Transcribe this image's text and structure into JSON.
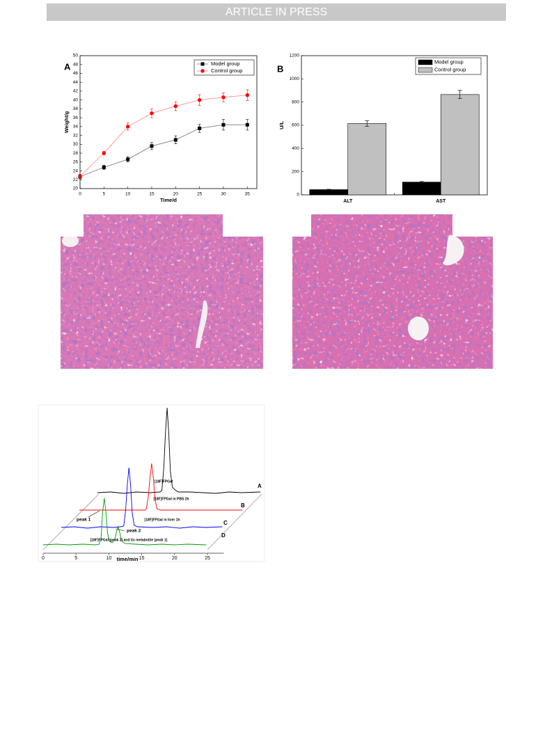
{
  "header": {
    "banner": "ARTICLE IN PRESS"
  },
  "chart_data": [
    {
      "type": "line",
      "panel": "A",
      "xlabel": "Time/d",
      "ylabel": "Weight/g",
      "x": [
        0,
        5,
        10,
        15,
        20,
        25,
        30,
        35
      ],
      "xlim": [
        0,
        37
      ],
      "xticks": [
        0,
        5,
        10,
        15,
        20,
        25,
        30,
        35
      ],
      "ylim": [
        20,
        50
      ],
      "yticks": [
        20,
        22,
        24,
        26,
        28,
        30,
        32,
        34,
        36,
        38,
        40,
        42,
        44,
        46,
        48,
        50
      ],
      "legend": "upper right",
      "series": [
        {
          "name": "Model group",
          "color": "#000000",
          "line_color": "#8c8c8c",
          "marker": "square",
          "values": [
            22.7,
            24.8,
            26.6,
            29.6,
            31.0,
            33.6,
            34.4,
            34.4
          ],
          "errors": [
            0.5,
            0.5,
            0.6,
            0.8,
            0.9,
            0.9,
            1.2,
            1.2
          ]
        },
        {
          "name": "Control group",
          "color": "#ff0000",
          "line_color": "#ff9a9a",
          "marker": "circle",
          "values": [
            22.8,
            28.0,
            34.0,
            37.0,
            38.6,
            40.0,
            40.6,
            41.1
          ],
          "errors": [
            0.3,
            0.4,
            0.8,
            1.0,
            1.0,
            1.2,
            1.0,
            1.2
          ]
        }
      ]
    },
    {
      "type": "bar",
      "panel": "B",
      "ylabel": "U/L",
      "categories": [
        "ALT",
        "AST"
      ],
      "ylim": [
        0,
        1200
      ],
      "yticks": [
        0,
        200,
        400,
        600,
        800,
        1000,
        1200
      ],
      "legend": "upper right",
      "series": [
        {
          "name": "Model group",
          "color": "#000000",
          "values": [
            45,
            110
          ],
          "errors": [
            3,
            5
          ]
        },
        {
          "name": "Control group",
          "color": "#c0c0c0",
          "values": [
            615,
            865
          ],
          "errors": [
            25,
            35
          ]
        }
      ]
    },
    {
      "type": "chromatogram",
      "xlabel": "time/min",
      "xlim": [
        0,
        27.5
      ],
      "xticks": [
        0,
        5,
        10,
        15,
        20,
        25
      ],
      "ylim": [
        0,
        130
      ],
      "series": [
        {
          "name": "[18F]FPGal",
          "letter": "A",
          "color": "#000000",
          "x": [
            0,
            2,
            4,
            6,
            8,
            9.5,
            9.8,
            10.1,
            10.35,
            10.6,
            10.85,
            11.1,
            11.4,
            11.8,
            12.3,
            14,
            16,
            18,
            20,
            22,
            24.8
          ],
          "values": [
            0,
            1,
            -1,
            1,
            0,
            1,
            3,
            36,
            86,
            122,
            86,
            30,
            8,
            4,
            1,
            1,
            0,
            -1,
            1,
            0,
            1
          ]
        },
        {
          "name": "[18F]FPGal in PBS 2h",
          "letter": "B",
          "color": "#ff0000",
          "x": [
            0,
            2,
            4,
            6,
            8,
            10,
            10.2,
            10.5,
            10.75,
            11,
            11.25,
            11.5,
            11.8,
            12.3,
            14,
            16,
            18,
            20,
            22,
            24.8
          ],
          "values": [
            0,
            0,
            0,
            0,
            0,
            0,
            2,
            20,
            47,
            67,
            47,
            17,
            2,
            0,
            0,
            0,
            0,
            0,
            0,
            0
          ]
        },
        {
          "name": "[18F]FPGal in liver 1h",
          "letter": "C",
          "color": "#0000ff",
          "x": [
            0,
            2,
            4,
            6,
            8,
            9,
            9.5,
            9.8,
            10.05,
            10.3,
            10.55,
            10.8,
            11.1,
            11.6,
            14,
            16,
            18,
            20,
            22,
            24.5
          ],
          "values": [
            0,
            1,
            -1,
            1,
            0,
            1,
            2,
            25,
            61,
            86,
            61,
            21,
            3,
            1,
            0,
            1,
            -1,
            1,
            0,
            1
          ]
        },
        {
          "name": "[18F]FPGal (peak 2) and its  metabolite (peak 1)",
          "letter": "D",
          "color": "#009900",
          "x": [
            0,
            2,
            4,
            6,
            8,
            8.5,
            8.8,
            9.05,
            9.3,
            9.55,
            9.8,
            10.1,
            10.5,
            10.9,
            11.15,
            11.4,
            11.65,
            11.9,
            12.4,
            14,
            16,
            18,
            20,
            22,
            24.8
          ],
          "values": [
            0,
            1,
            0,
            1,
            0,
            1,
            8,
            47,
            67,
            47,
            17,
            5,
            3,
            8,
            18,
            26,
            18,
            7,
            2,
            1,
            0,
            1,
            0,
            1,
            0
          ]
        }
      ],
      "annotations": [
        {
          "text": "peak 1"
        },
        {
          "text": "peak 2"
        }
      ]
    }
  ]
}
